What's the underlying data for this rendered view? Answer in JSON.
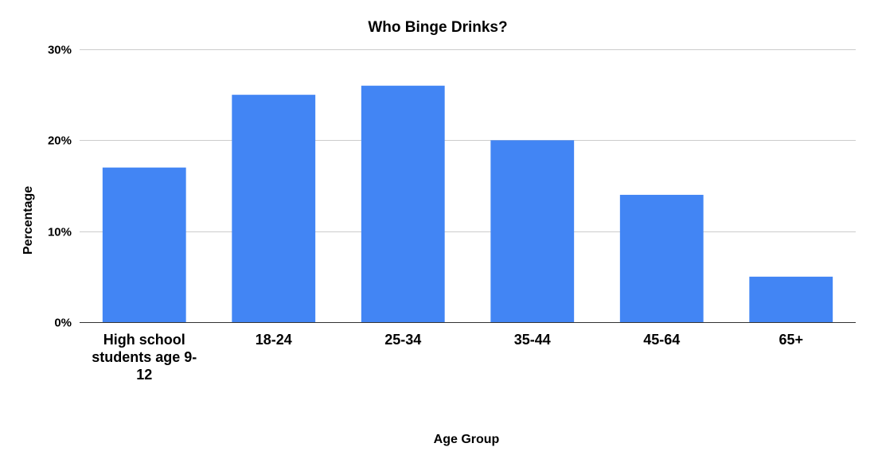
{
  "chart_data": {
    "type": "bar",
    "title": "Who Binge Drinks?",
    "xlabel": "Age Group",
    "ylabel": "Percentage",
    "categories": [
      "High school students age 9-12",
      "18-24",
      "25-34",
      "35-44",
      "45-64",
      "65+"
    ],
    "category_lines": [
      [
        "High school",
        "students age 9-",
        "12"
      ],
      [
        "18-24"
      ],
      [
        "25-34"
      ],
      [
        "35-44"
      ],
      [
        "45-64"
      ],
      [
        "65+"
      ]
    ],
    "values": [
      17,
      25,
      26,
      20,
      14,
      5
    ],
    "unit": "%",
    "ylim": [
      0,
      30
    ],
    "yticks": [
      0,
      10,
      20,
      30
    ],
    "ytick_labels": [
      "0%",
      "10%",
      "20%",
      "30%"
    ],
    "grid": true,
    "bar_color": "#4285f4"
  }
}
